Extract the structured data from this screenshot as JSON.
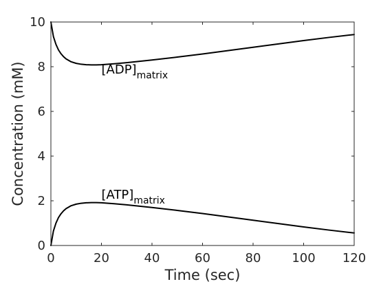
{
  "chart_data": {
    "type": "line",
    "xlabel": "Time (sec)",
    "ylabel": "Concentration (mM)",
    "xlim": [
      0,
      120
    ],
    "ylim": [
      0,
      10
    ],
    "xticks": [
      "0",
      "20",
      "40",
      "60",
      "80",
      "100",
      "120"
    ],
    "yticks": [
      "0",
      "2",
      "4",
      "6",
      "8",
      "10"
    ],
    "grid": false,
    "series": [
      {
        "id": "adp",
        "x": [
          0,
          1,
          2,
          3,
          4,
          5,
          6,
          8,
          10,
          12,
          14,
          16,
          18,
          20,
          25,
          30,
          40,
          50,
          60,
          70,
          80,
          90,
          100,
          110,
          120
        ],
        "y": [
          10,
          9.35,
          9.0,
          8.75,
          8.58,
          8.45,
          8.35,
          8.22,
          8.15,
          8.11,
          8.09,
          8.08,
          8.08,
          8.09,
          8.13,
          8.18,
          8.3,
          8.43,
          8.57,
          8.72,
          8.87,
          9.02,
          9.17,
          9.31,
          9.44
        ]
      },
      {
        "id": "atp",
        "x": [
          0,
          1,
          2,
          3,
          4,
          5,
          6,
          8,
          10,
          12,
          14,
          16,
          18,
          20,
          25,
          30,
          40,
          50,
          60,
          70,
          80,
          90,
          100,
          110,
          120
        ],
        "y": [
          0,
          0.65,
          1.0,
          1.25,
          1.42,
          1.55,
          1.65,
          1.78,
          1.85,
          1.89,
          1.91,
          1.92,
          1.92,
          1.91,
          1.87,
          1.82,
          1.7,
          1.57,
          1.43,
          1.28,
          1.13,
          0.98,
          0.83,
          0.69,
          0.56
        ]
      }
    ],
    "annotations": [
      {
        "id": "adp",
        "main": "[ADP]",
        "sub": "matrix",
        "x": 20,
        "y": 7.7
      },
      {
        "id": "atp",
        "main": "[ATP]",
        "sub": "matrix",
        "x": 20,
        "y": 2.1
      }
    ]
  }
}
